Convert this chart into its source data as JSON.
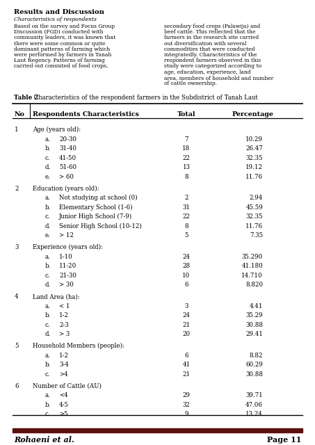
{
  "title": "Results and Discussion",
  "subtitle": "Characteristics of respondents",
  "body_left": "Based on the survey and Focus Group Discussion (FGD) conducted with community leaders, it was known that there were some common or quite dominant patterns of farming which were performed by farmers in Tanah Laut  Regency.  Patterns of farming  carried  out  consisted  of  food  crops,",
  "body_right": "secondary food crops (Palawija) and beef cattle.  This reflected that the farmers in the research site carried out  diversification  with  several  commodities  that were  conducted  integratedly.  Characteristics of the respondent  farmers  observed  in  this  study  were categorized  according  to  age,  education,  experience, land  area,  members  of  household  and  number  of cattle ownership.",
  "table_caption_bold": "Table 2",
  "table_caption_rest": ": Characteristics of the respondent farmers in the Subdistrict of Tanah Laut",
  "col_headers": [
    "No",
    "Respondents Characteristics",
    "Total",
    "Percentage"
  ],
  "rows": [
    {
      "no": "1",
      "indent": 0,
      "letter": "",
      "label": "Age (years old):",
      "total": "",
      "pct": ""
    },
    {
      "no": "",
      "indent": 1,
      "letter": "a.",
      "label": "20-30",
      "total": "7",
      "pct": "10.29"
    },
    {
      "no": "",
      "indent": 1,
      "letter": "b.",
      "label": "31-40",
      "total": "18",
      "pct": "26.47"
    },
    {
      "no": "",
      "indent": 1,
      "letter": "c.",
      "label": "41-50",
      "total": "22",
      "pct": "32.35"
    },
    {
      "no": "",
      "indent": 1,
      "letter": "d.",
      "label": "51-60",
      "total": "13",
      "pct": "19.12"
    },
    {
      "no": "",
      "indent": 1,
      "letter": "e.",
      "label": "> 60",
      "total": "8",
      "pct": "11.76"
    },
    {
      "no": "2",
      "indent": 0,
      "letter": "",
      "label": "Education (years old):",
      "total": "",
      "pct": ""
    },
    {
      "no": "",
      "indent": 1,
      "letter": "a.",
      "label": "Not studying at school (0)",
      "total": "2",
      "pct": "2.94"
    },
    {
      "no": "",
      "indent": 1,
      "letter": "b.",
      "label": "Elementary School (1-6)",
      "total": "31",
      "pct": "45.59"
    },
    {
      "no": "",
      "indent": 1,
      "letter": "c.",
      "label": "Junior High School (7-9)",
      "total": "22",
      "pct": "32.35"
    },
    {
      "no": "",
      "indent": 1,
      "letter": "d.",
      "label": "Senior High School (10-12)",
      "total": "8",
      "pct": "11.76"
    },
    {
      "no": "",
      "indent": 1,
      "letter": "e.",
      "label": "> 12",
      "total": "5",
      "pct": "7.35"
    },
    {
      "no": "3",
      "indent": 0,
      "letter": "",
      "label": "Experience (years old):",
      "total": "",
      "pct": ""
    },
    {
      "no": "",
      "indent": 1,
      "letter": "a.",
      "label": "1-10",
      "total": "24",
      "pct": "35.290"
    },
    {
      "no": "",
      "indent": 1,
      "letter": "b.",
      "label": "11-20",
      "total": "28",
      "pct": "41.180"
    },
    {
      "no": "",
      "indent": 1,
      "letter": "c.",
      "label": "21-30",
      "total": "10",
      "pct": "14.710"
    },
    {
      "no": "",
      "indent": 1,
      "letter": "d.",
      "label": "> 30",
      "total": "6",
      "pct": "8.820"
    },
    {
      "no": "4",
      "indent": 0,
      "letter": "",
      "label": "Land Area (ha):",
      "total": "",
      "pct": ""
    },
    {
      "no": "",
      "indent": 1,
      "letter": "a.",
      "label": "< 1",
      "total": "3",
      "pct": "4.41"
    },
    {
      "no": "",
      "indent": 1,
      "letter": "b.",
      "label": "1-2",
      "total": "24",
      "pct": "35.29"
    },
    {
      "no": "",
      "indent": 1,
      "letter": "c.",
      "label": "2-3",
      "total": "21",
      "pct": "30.88"
    },
    {
      "no": "",
      "indent": 1,
      "letter": "d.",
      "label": "> 3",
      "total": "20",
      "pct": "29.41"
    },
    {
      "no": "5",
      "indent": 0,
      "letter": "",
      "label": "Household Members (people):",
      "total": "",
      "pct": ""
    },
    {
      "no": "",
      "indent": 1,
      "letter": "a.",
      "label": "1-2",
      "total": "6",
      "pct": "8.82"
    },
    {
      "no": "",
      "indent": 1,
      "letter": "b.",
      "label": "3-4",
      "total": "41",
      "pct": "60.29"
    },
    {
      "no": "",
      "indent": 1,
      "letter": "c.",
      "label": ">4",
      "total": "21",
      "pct": "30.88"
    },
    {
      "no": "6",
      "indent": 0,
      "letter": "",
      "label": "Number of Cattle (AU)",
      "total": "",
      "pct": ""
    },
    {
      "no": "",
      "indent": 1,
      "letter": "a.",
      "label": "<4",
      "total": "29",
      "pct": "39.71"
    },
    {
      "no": "",
      "indent": 1,
      "letter": "b.",
      "label": "4-5",
      "total": "32",
      "pct": "47.06"
    },
    {
      "no": "",
      "indent": 1,
      "letter": "c.",
      "label": ">5",
      "total": "9",
      "pct": "13.24"
    }
  ],
  "footer_author": "Rohaeni et al.",
  "footer_page": "Page 11",
  "footer_bar_color": "#5c1010",
  "background_color": "#ffffff",
  "text_color": "#000000"
}
